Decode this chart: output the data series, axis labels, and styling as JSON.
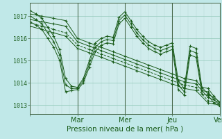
{
  "bg_color": "#c0e8e8",
  "plot_bg_color": "#d0ecec",
  "line_color": "#1a5c1a",
  "grid_minor_color": "#b0d8d0",
  "grid_major_color": "#90c8b8",
  "day_line_color": "#406040",
  "xlabel": "Pression niveau de la mer( hPa )",
  "xlabel_fontsize": 7.5,
  "ytick_labels": [
    "1013",
    "1014",
    "1015",
    "1016",
    "1017"
  ],
  "ytick_vals": [
    1013,
    1014,
    1015,
    1016,
    1017
  ],
  "xtick_vals": [
    0,
    48,
    96,
    144,
    192
  ],
  "xtick_labels": [
    "",
    "Mar",
    "Mer",
    "Jeu",
    "Ven"
  ],
  "ylim": [
    1012.6,
    1017.6
  ],
  "xlim": [
    0,
    192
  ],
  "series": [
    {
      "x": [
        0,
        12,
        24,
        36,
        48,
        60,
        72,
        84,
        96,
        108,
        120,
        132,
        144,
        156,
        168,
        180,
        192
      ],
      "y": [
        1017.1,
        1017.0,
        1016.9,
        1016.8,
        1016.0,
        1015.8,
        1015.6,
        1015.4,
        1015.2,
        1015.0,
        1014.8,
        1014.6,
        1014.4,
        1014.2,
        1014.1,
        1013.5,
        1013.15
      ],
      "ls": "-"
    },
    {
      "x": [
        0,
        12,
        24,
        36,
        48,
        60,
        72,
        84,
        96,
        108,
        120,
        132,
        144,
        156,
        168,
        180,
        192
      ],
      "y": [
        1016.85,
        1016.75,
        1016.65,
        1016.55,
        1015.85,
        1015.65,
        1015.45,
        1015.25,
        1015.05,
        1014.85,
        1014.65,
        1014.45,
        1014.25,
        1014.05,
        1013.95,
        1013.35,
        1013.1
      ],
      "ls": "-"
    },
    {
      "x": [
        0,
        12,
        24,
        36,
        48,
        60,
        72,
        84,
        96,
        108,
        120,
        132,
        144,
        156,
        168,
        180,
        192
      ],
      "y": [
        1016.7,
        1016.55,
        1016.4,
        1016.25,
        1015.7,
        1015.5,
        1015.3,
        1015.1,
        1014.9,
        1014.7,
        1014.5,
        1014.3,
        1014.1,
        1013.9,
        1013.8,
        1013.2,
        1013.05
      ],
      "ls": "--"
    },
    {
      "x": [
        0,
        12,
        24,
        36,
        48,
        60,
        72,
        84,
        96,
        108,
        120,
        132,
        144,
        156,
        168,
        180,
        192
      ],
      "y": [
        1016.55,
        1016.4,
        1016.25,
        1016.1,
        1015.55,
        1015.35,
        1015.15,
        1014.95,
        1014.75,
        1014.55,
        1014.35,
        1014.15,
        1013.95,
        1013.75,
        1013.65,
        1013.1,
        1013.0
      ],
      "ls": "-"
    },
    {
      "x": [
        0,
        6,
        12,
        18,
        24,
        30,
        36,
        42,
        48,
        54,
        60,
        66,
        72,
        78,
        84,
        90,
        96,
        102,
        108,
        114,
        120,
        126,
        132,
        138,
        144,
        150,
        156,
        162,
        168,
        174,
        180,
        186,
        192
      ],
      "y": [
        1017.25,
        1017.1,
        1016.9,
        1016.5,
        1016.1,
        1015.5,
        1014.2,
        1013.85,
        1013.8,
        1014.2,
        1015.0,
        1015.8,
        1016.0,
        1016.1,
        1016.05,
        1016.95,
        1017.2,
        1016.8,
        1016.4,
        1016.1,
        1015.85,
        1015.7,
        1015.6,
        1015.7,
        1015.8,
        1014.1,
        1013.75,
        1015.65,
        1015.55,
        1013.8,
        1013.75,
        1013.4,
        1013.1
      ],
      "ls": "-"
    },
    {
      "x": [
        0,
        6,
        12,
        18,
        24,
        30,
        36,
        42,
        48,
        54,
        60,
        66,
        72,
        78,
        84,
        90,
        96,
        102,
        108,
        114,
        120,
        126,
        132,
        138,
        144,
        150,
        156,
        162,
        168,
        174,
        180,
        186,
        192
      ],
      "y": [
        1017.0,
        1016.85,
        1016.65,
        1016.25,
        1015.85,
        1015.25,
        1013.9,
        1013.75,
        1013.75,
        1014.1,
        1014.85,
        1015.6,
        1015.85,
        1015.95,
        1015.9,
        1016.8,
        1017.05,
        1016.65,
        1016.25,
        1015.95,
        1015.7,
        1015.55,
        1015.45,
        1015.55,
        1015.65,
        1013.9,
        1013.6,
        1015.45,
        1015.35,
        1013.65,
        1013.6,
        1013.25,
        1013.0
      ],
      "ls": "-"
    },
    {
      "x": [
        0,
        6,
        12,
        18,
        24,
        30,
        36,
        42,
        48,
        54,
        60,
        66,
        72,
        78,
        84,
        90,
        96,
        102,
        108,
        114,
        120,
        126,
        132,
        138,
        144,
        150,
        156,
        162,
        168,
        174,
        180,
        186,
        192
      ],
      "y": [
        1016.75,
        1016.6,
        1016.4,
        1016.0,
        1015.6,
        1015.0,
        1013.6,
        1013.65,
        1013.7,
        1014.0,
        1014.7,
        1015.4,
        1015.7,
        1015.8,
        1015.75,
        1016.65,
        1016.9,
        1016.5,
        1016.1,
        1015.8,
        1015.55,
        1015.4,
        1015.3,
        1015.4,
        1015.5,
        1013.7,
        1013.45,
        1015.25,
        1015.15,
        1013.5,
        1013.45,
        1013.1,
        1012.95
      ],
      "ls": "-"
    }
  ]
}
